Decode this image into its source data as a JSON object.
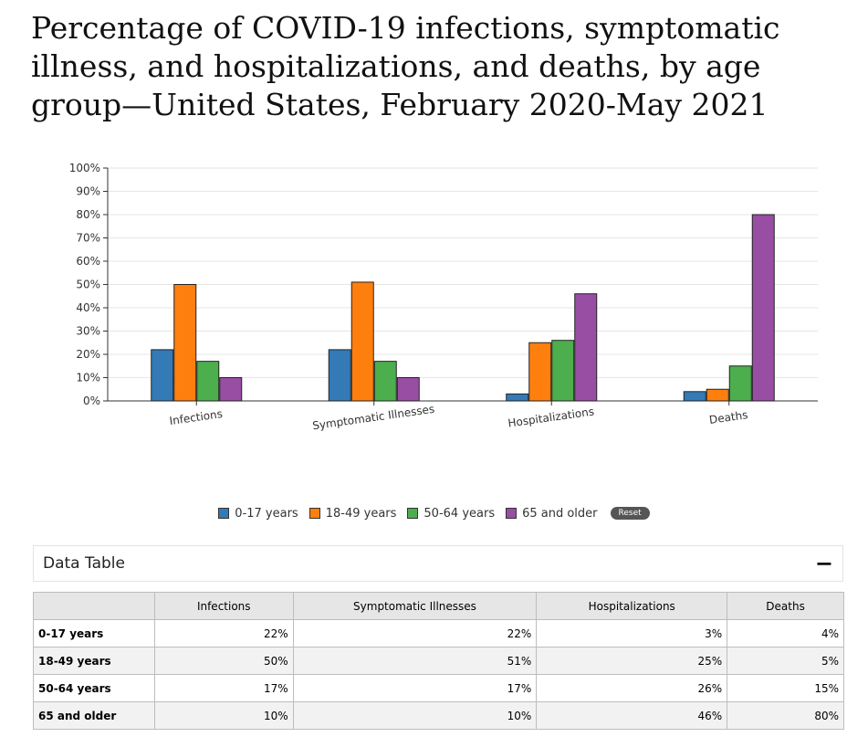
{
  "title": "Percentage of COVID-19 infections, symptomatic illness, and hospitalizations, and deaths, by age group—United States, February 2020-May 2021",
  "legend_reset_label": "Reset",
  "data_table": {
    "title": "Data Table",
    "toggle": "−",
    "corner": "",
    "columns": [
      "Infections",
      "Symptomatic Illnesses",
      "Hospitalizations",
      "Deaths"
    ],
    "rows": [
      {
        "label": "0-17 years",
        "cells": [
          "22%",
          "22%",
          "3%",
          "4%"
        ]
      },
      {
        "label": "18-49 years",
        "cells": [
          "50%",
          "51%",
          "25%",
          "5%"
        ]
      },
      {
        "label": "50-64 years",
        "cells": [
          "17%",
          "17%",
          "26%",
          "15%"
        ]
      },
      {
        "label": "65 and older",
        "cells": [
          "10%",
          "10%",
          "46%",
          "80%"
        ]
      }
    ]
  },
  "chart_data": {
    "type": "bar",
    "categories": [
      "Infections",
      "Symptomatic Illnesses",
      "Hospitalizations",
      "Deaths"
    ],
    "series": [
      {
        "name": "0-17 years",
        "color": "#337ab7",
        "values": [
          22,
          22,
          3,
          4
        ]
      },
      {
        "name": "18-49 years",
        "color": "#ff7f0e",
        "values": [
          50,
          51,
          25,
          5
        ]
      },
      {
        "name": "50-64 years",
        "color": "#4cae4c",
        "values": [
          17,
          17,
          26,
          15
        ]
      },
      {
        "name": "65 and older",
        "color": "#984ea3",
        "values": [
          10,
          10,
          46,
          80
        ]
      }
    ],
    "ylim": [
      0,
      100
    ],
    "yticks": [
      "0%",
      "10%",
      "20%",
      "30%",
      "40%",
      "50%",
      "60%",
      "70%",
      "80%",
      "90%",
      "100%"
    ],
    "xlabel": "",
    "ylabel": "",
    "grid": true,
    "legend_position": "bottom"
  }
}
